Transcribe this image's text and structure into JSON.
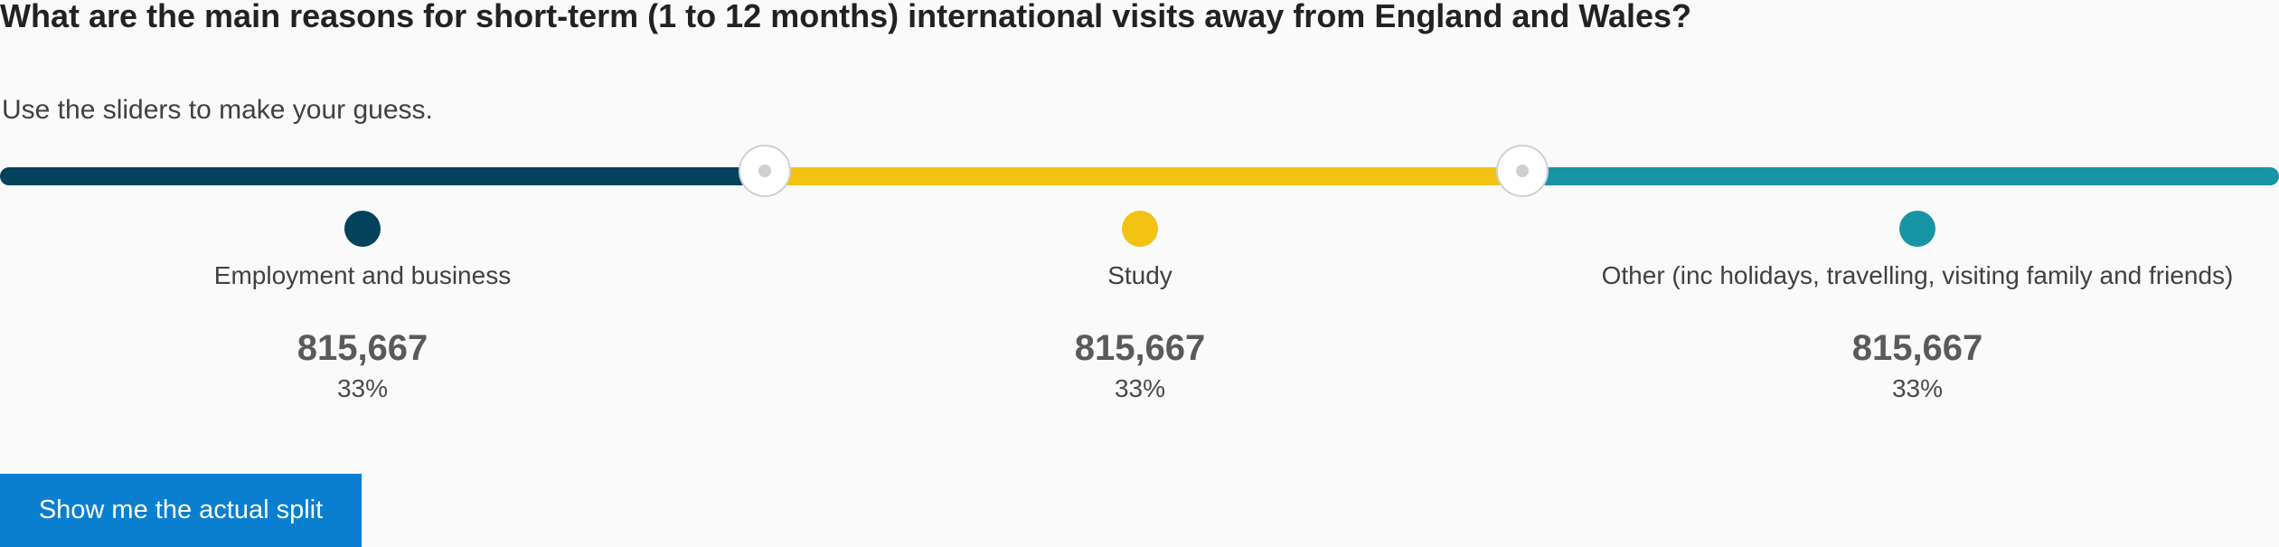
{
  "question": {
    "title": "What are the main reasons for short-term (1 to 12 months) international visits away from England and Wales?",
    "instruction": "Use the sliders to make your guess."
  },
  "slider": {
    "segments": [
      {
        "label": "Employment and business",
        "value": "815,667",
        "percent": "33%",
        "color": "#04425b"
      },
      {
        "label": "Study",
        "value": "815,667",
        "percent": "33%",
        "color": "#f2c313"
      },
      {
        "label": "Other (inc holidays, travelling, visiting family and friends)",
        "value": "815,667",
        "percent": "33%",
        "color": "#1795a4"
      }
    ],
    "handle_positions_percent": [
      33.7,
      66.9
    ],
    "handle_color": "#ffffff"
  },
  "action": {
    "button_label": "Show me the actual split",
    "button_color": "#0a7fd0"
  }
}
